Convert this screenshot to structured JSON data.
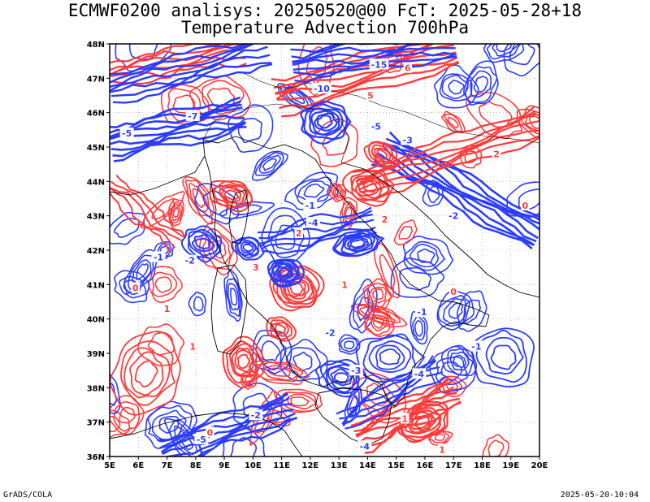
{
  "title_line1": "ECMWF0200 analisys: 20250520@00 FcT: 2025-05-28+18",
  "title_line2": "Temperature Advection 700hPa",
  "footer_left": "GrADS/COLA",
  "footer_right": "2025-05-20-10:04",
  "map": {
    "lon_range": [
      5,
      20
    ],
    "lat_range": [
      36,
      48
    ],
    "lon_labels": [
      "5E",
      "6E",
      "7E",
      "8E",
      "9E",
      "10E",
      "11E",
      "12E",
      "13E",
      "14E",
      "15E",
      "16E",
      "17E",
      "18E",
      "19E",
      "20E"
    ],
    "lat_labels": [
      "36N",
      "37N",
      "38N",
      "39N",
      "40N",
      "41N",
      "42N",
      "43N",
      "44N",
      "45N",
      "46N",
      "47N",
      "48N"
    ],
    "grid": "dotted",
    "colors": {
      "warm_advection": "#ff3b3b",
      "cold_advection": "#2b3cff",
      "coastline": "#000000",
      "grid": "#9a9a9a"
    },
    "contour_labels": [
      {
        "text": "-15",
        "lon": 14.4,
        "lat": 47.4,
        "sign": "neg"
      },
      {
        "text": "-10",
        "lon": 12.4,
        "lat": 46.7,
        "sign": "neg"
      },
      {
        "text": "-7",
        "lon": 7.9,
        "lat": 45.9,
        "sign": "neg"
      },
      {
        "text": "-5",
        "lon": 5.6,
        "lat": 45.4,
        "sign": "neg"
      },
      {
        "text": "-5",
        "lon": 14.3,
        "lat": 45.6,
        "sign": "neg"
      },
      {
        "text": "-5",
        "lon": 8.2,
        "lat": 36.5,
        "sign": "neg"
      },
      {
        "text": "-4",
        "lon": 12.1,
        "lat": 42.8,
        "sign": "neg"
      },
      {
        "text": "-4",
        "lon": 15.8,
        "lat": 38.4,
        "sign": "neg"
      },
      {
        "text": "-3",
        "lon": 15.4,
        "lat": 45.2,
        "sign": "neg"
      },
      {
        "text": "-3",
        "lon": 13.6,
        "lat": 38.5,
        "sign": "neg"
      },
      {
        "text": "-2",
        "lon": 7.8,
        "lat": 41.7,
        "sign": "neg"
      },
      {
        "text": "-2",
        "lon": 12.7,
        "lat": 39.6,
        "sign": "neg"
      },
      {
        "text": "-2",
        "lon": 17.0,
        "lat": 43.0,
        "sign": "neg"
      },
      {
        "text": "-2",
        "lon": 10.1,
        "lat": 37.2,
        "sign": "neg"
      },
      {
        "text": "-1",
        "lon": 6.7,
        "lat": 41.8,
        "sign": "neg"
      },
      {
        "text": "-1",
        "lon": 12.0,
        "lat": 43.3,
        "sign": "neg"
      },
      {
        "text": "-1",
        "lon": 17.8,
        "lat": 39.2,
        "sign": "neg"
      },
      {
        "text": "-1",
        "lon": 15.9,
        "lat": 40.2,
        "sign": "neg"
      },
      {
        "text": "-4",
        "lon": 13.9,
        "lat": 36.3,
        "sign": "neg"
      },
      {
        "text": "6",
        "lon": 15.4,
        "lat": 47.3,
        "sign": "pos"
      },
      {
        "text": "5",
        "lon": 14.1,
        "lat": 46.5,
        "sign": "pos"
      },
      {
        "text": "3",
        "lon": 10.1,
        "lat": 41.5,
        "sign": "pos"
      },
      {
        "text": "2",
        "lon": 18.5,
        "lat": 44.8,
        "sign": "pos"
      },
      {
        "text": "2",
        "lon": 14.6,
        "lat": 42.9,
        "sign": "pos"
      },
      {
        "text": "2",
        "lon": 11.6,
        "lat": 42.5,
        "sign": "pos"
      },
      {
        "text": "1",
        "lon": 7.9,
        "lat": 39.2,
        "sign": "pos"
      },
      {
        "text": "1",
        "lon": 7.0,
        "lat": 40.3,
        "sign": "pos"
      },
      {
        "text": "1",
        "lon": 15.3,
        "lat": 37.1,
        "sign": "pos"
      },
      {
        "text": "1",
        "lon": 16.6,
        "lat": 36.2,
        "sign": "pos"
      },
      {
        "text": "1",
        "lon": 13.2,
        "lat": 41.0,
        "sign": "pos"
      },
      {
        "text": "0",
        "lon": 19.5,
        "lat": 43.3,
        "sign": "pos"
      },
      {
        "text": "0",
        "lon": 8.5,
        "lat": 36.7,
        "sign": "pos"
      },
      {
        "text": "0",
        "lon": 5.9,
        "lat": 40.9,
        "sign": "pos"
      },
      {
        "text": "0",
        "lon": 17.0,
        "lat": 40.8,
        "sign": "pos"
      }
    ]
  }
}
